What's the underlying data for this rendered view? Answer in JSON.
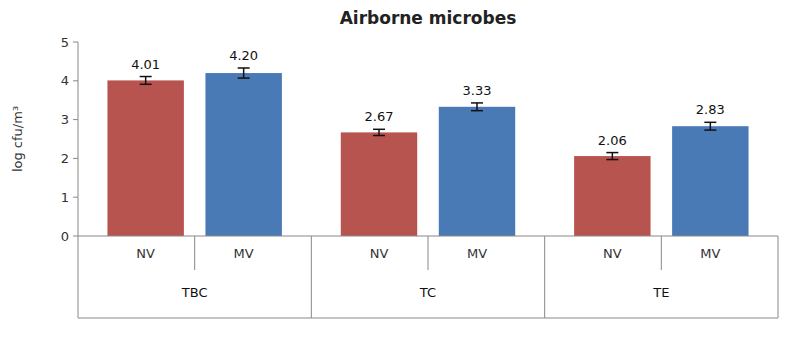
{
  "chart_data": {
    "type": "bar",
    "title": "Airborne microbes",
    "y_label": "log cfu/m³",
    "categories": [
      "TBC",
      "TC",
      "TE"
    ],
    "series": [
      {
        "name": "NV",
        "color": "#b85450",
        "values": [
          4.01,
          2.67,
          2.06
        ],
        "value_labels": [
          "4.01",
          "2.67",
          "2.06"
        ],
        "errors": [
          0.1,
          0.08,
          0.09
        ]
      },
      {
        "name": "MV",
        "color": "#4a7ab5",
        "values": [
          4.2,
          3.33,
          2.83
        ],
        "value_labels": [
          "4.20",
          "3.33",
          "2.83"
        ],
        "errors": [
          0.13,
          0.1,
          0.1
        ]
      }
    ],
    "ylim": [
      0,
      5
    ],
    "yticks": [
      0,
      1,
      2,
      3,
      4,
      5
    ],
    "grid": false,
    "data_labels": true
  }
}
